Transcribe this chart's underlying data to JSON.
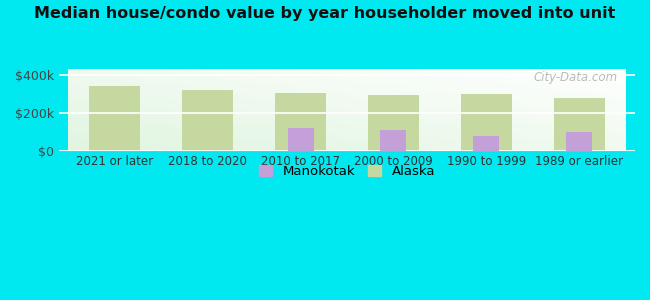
{
  "title": "Median house/condo value by year householder moved into unit",
  "categories": [
    "2021 or later",
    "2018 to 2020",
    "2010 to 2017",
    "2000 to 2009",
    "1990 to 1999",
    "1989 or earlier"
  ],
  "manokotak_values": [
    0,
    0,
    120000,
    110000,
    75000,
    98000
  ],
  "alaska_values": [
    338000,
    322000,
    305000,
    293000,
    300000,
    278000
  ],
  "manokotak_color": "#c4a0d8",
  "alaska_color": "#c5d8a0",
  "background_color": "#00e8f0",
  "ylabel_ticks": [
    0,
    200000,
    400000
  ],
  "ylabel_labels": [
    "$0",
    "$200k",
    "$400k"
  ],
  "ylim": [
    0,
    430000
  ],
  "alaska_bar_width": 0.55,
  "mano_bar_width": 0.28,
  "legend_manokotak": "Manokotak",
  "legend_alaska": "Alaska",
  "watermark": "City-Data.com"
}
